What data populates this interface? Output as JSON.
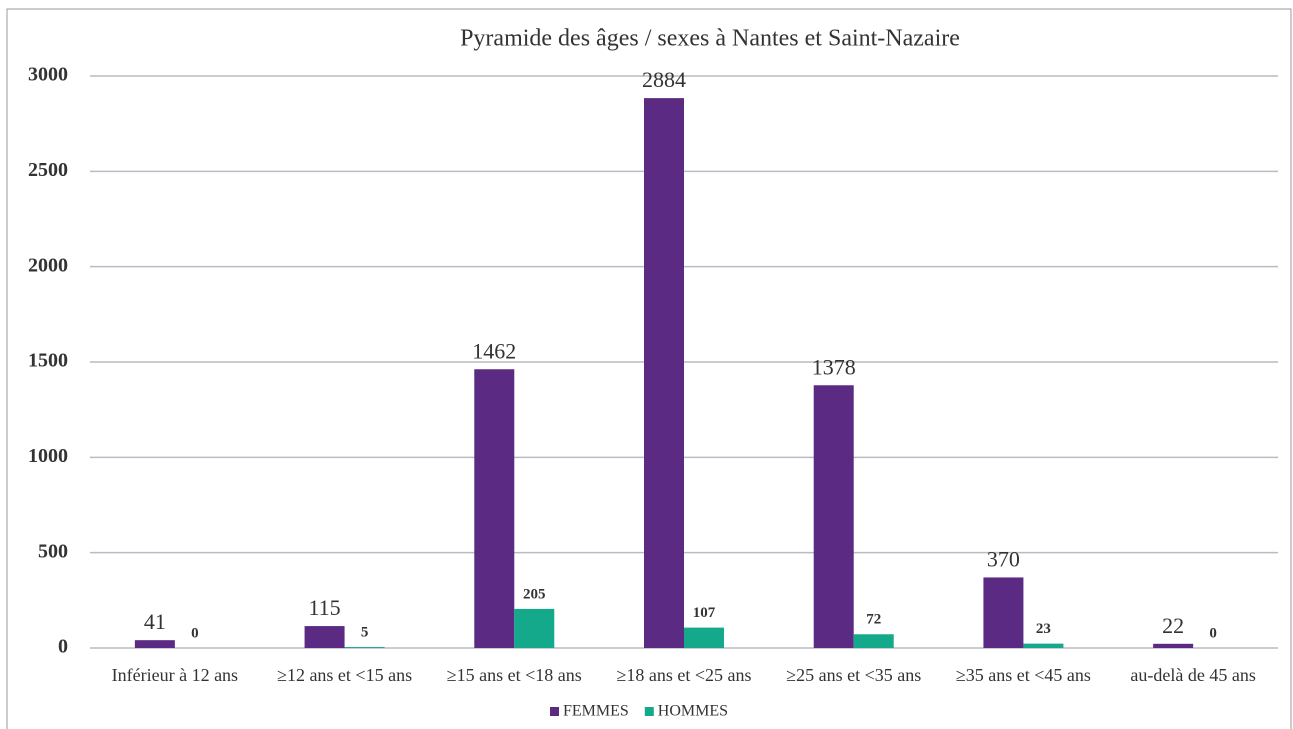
{
  "chart_data": {
    "type": "bar",
    "title": "Pyramide des âges / sexes à Nantes et Saint-Nazaire",
    "categories": [
      "Inférieur à 12 ans",
      "≥12 ans et <15 ans",
      "≥15 ans et <18 ans",
      "≥18 ans et <25 ans",
      "≥25 ans et <35 ans",
      "≥35 ans et <45 ans",
      "au-delà de 45 ans"
    ],
    "series": [
      {
        "name": "FEMMES",
        "color": "#5b2a82",
        "values": [
          41,
          115,
          1462,
          2884,
          1378,
          370,
          22
        ]
      },
      {
        "name": "HOMMES",
        "color": "#14a98b",
        "values": [
          0,
          5,
          205,
          107,
          72,
          23,
          0
        ]
      }
    ],
    "ylim": [
      0,
      3000
    ],
    "yticks": [
      0,
      500,
      1000,
      1500,
      2000,
      2500,
      3000
    ],
    "grid": true,
    "legend": "bottom"
  }
}
